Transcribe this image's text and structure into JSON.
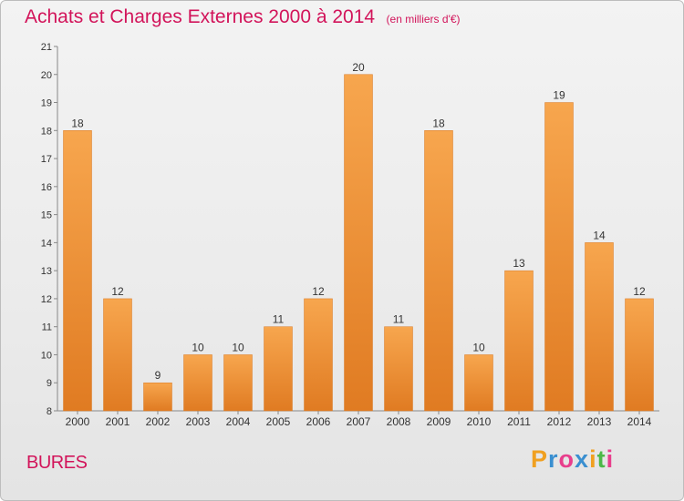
{
  "chart_data": {
    "type": "bar",
    "title": "Achats et Charges Externes 2000 à 2014",
    "unit_label": "(en milliers d'€)",
    "categories": [
      "2000",
      "2001",
      "2002",
      "2003",
      "2004",
      "2005",
      "2006",
      "2007",
      "2008",
      "2009",
      "2010",
      "2011",
      "2012",
      "2013",
      "2014"
    ],
    "values": [
      18,
      12,
      9,
      10,
      10,
      11,
      12,
      20,
      11,
      18,
      10,
      13,
      19,
      14,
      12
    ],
    "ylim": [
      8,
      21
    ],
    "yticks": [
      8,
      9,
      10,
      11,
      12,
      13,
      14,
      15,
      16,
      17,
      18,
      19,
      20,
      21
    ],
    "xlabel": "",
    "ylabel": "",
    "grid": false,
    "legend": "none",
    "bar_color_top": "#f7a64e",
    "bar_color_bottom": "#e07b22"
  },
  "location_label": "BURES",
  "logo": {
    "letters": [
      "P",
      "r",
      "o",
      "x",
      "i",
      "t",
      "i"
    ],
    "colors": [
      "#f0a020",
      "#3a8fd0",
      "#e83e8c",
      "#3a8fd0",
      "#f0a020",
      "#4cb848",
      "#e83e8c"
    ]
  }
}
